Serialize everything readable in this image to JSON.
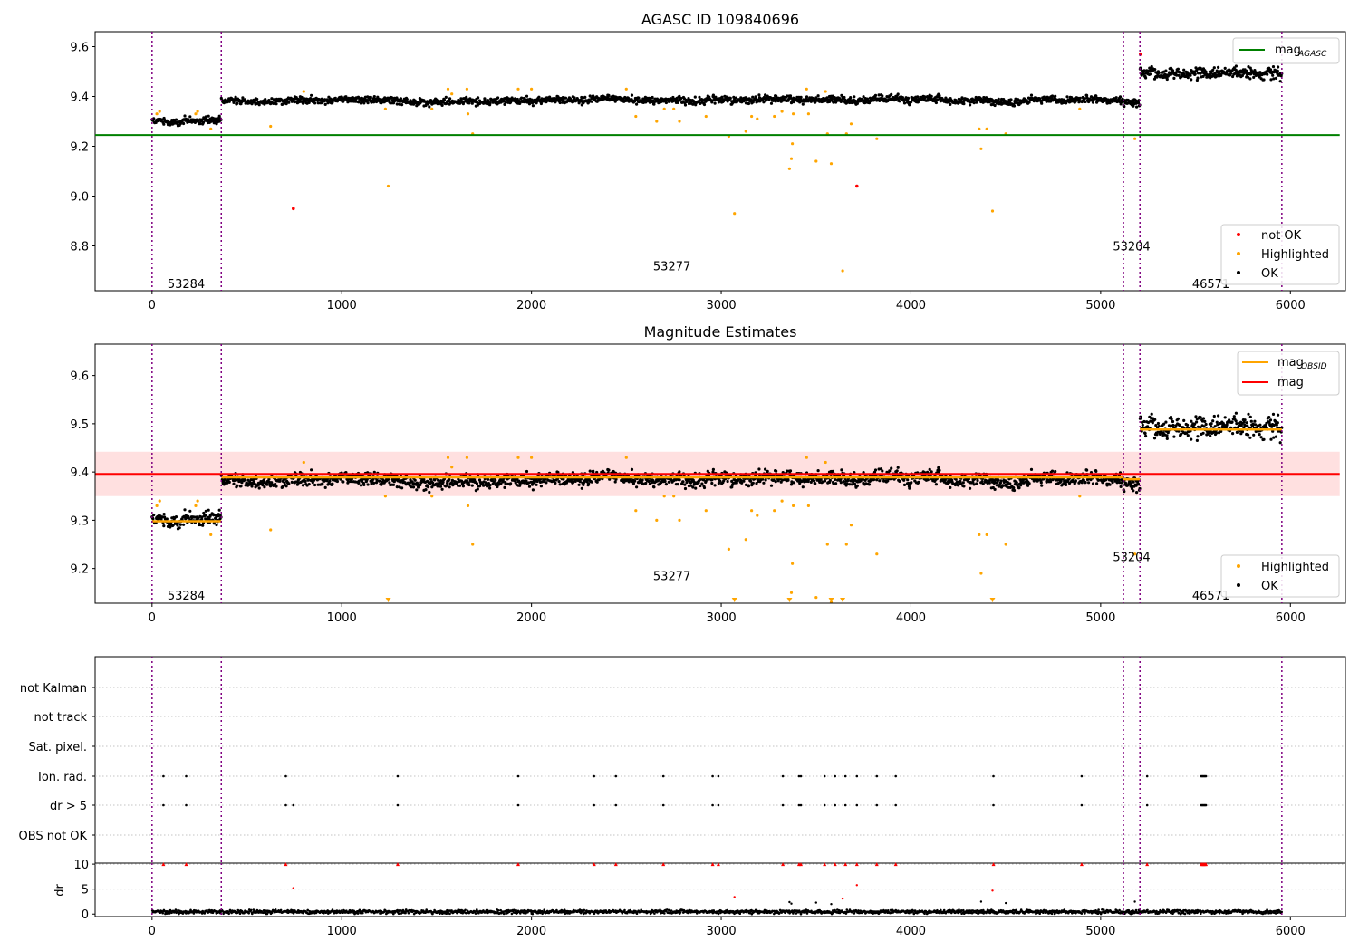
{
  "figure": {
    "title": "AGASC ID 109840696",
    "subtitle": "Magnitude Estimates"
  },
  "chart_data": [
    {
      "type": "scatter",
      "title": "AGASC ID 109840696",
      "xlim": [
        -300,
        6290
      ],
      "ylim": [
        8.62,
        9.66
      ],
      "xticks": [
        0,
        1000,
        2000,
        3000,
        4000,
        5000,
        6000
      ],
      "yticks": [
        8.8,
        9.0,
        9.2,
        9.4,
        9.6
      ],
      "grid": false,
      "obsid_boundaries": [
        0,
        365,
        5120,
        5207,
        5955
      ],
      "obsid_labels": [
        {
          "text": "53284",
          "x": 180,
          "y": 8.65
        },
        {
          "text": "53277",
          "x": 2740,
          "y": 8.72
        },
        {
          "text": "53204",
          "x": 5163,
          "y": 8.8
        },
        {
          "text": "46571",
          "x": 5581,
          "y": 8.65
        }
      ],
      "lines": [
        {
          "name": "mag_AGASC",
          "legend_main": "mag",
          "legend_sub": "AGASC",
          "color": "#008000",
          "y": 9.245,
          "x": [
            -300,
            6260
          ]
        }
      ],
      "legend_lines_position": "upper right",
      "legend_points_position": "lower right",
      "legend_points": [
        {
          "label": "not OK",
          "color": "#ff0000"
        },
        {
          "label": "Highlighted",
          "color": "#ffa500"
        },
        {
          "label": "OK",
          "color": "#000000"
        }
      ],
      "ok_segments": [
        {
          "x0": 0,
          "x1": 365,
          "level": 9.3,
          "noise": 0.015
        },
        {
          "x0": 365,
          "x1": 5120,
          "level": 9.385,
          "noise": 0.014
        },
        {
          "x0": 5120,
          "x1": 5207,
          "level": 9.38,
          "noise": 0.015
        },
        {
          "x0": 5207,
          "x1": 5955,
          "level": 9.49,
          "noise": 0.022
        }
      ],
      "highlighted_points": [
        [
          25,
          9.33
        ],
        [
          40,
          9.34
        ],
        [
          230,
          9.33
        ],
        [
          240,
          9.34
        ],
        [
          310,
          9.27
        ],
        [
          625,
          9.28
        ],
        [
          800,
          9.42
        ],
        [
          1230,
          9.35
        ],
        [
          1245,
          9.04
        ],
        [
          1475,
          9.35
        ],
        [
          1560,
          9.43
        ],
        [
          1580,
          9.41
        ],
        [
          1660,
          9.43
        ],
        [
          1665,
          9.33
        ],
        [
          1690,
          9.25
        ],
        [
          1930,
          9.43
        ],
        [
          2000,
          9.43
        ],
        [
          2500,
          9.43
        ],
        [
          2550,
          9.32
        ],
        [
          2660,
          9.3
        ],
        [
          2700,
          9.35
        ],
        [
          2750,
          9.35
        ],
        [
          2780,
          9.3
        ],
        [
          2920,
          9.32
        ],
        [
          3040,
          9.24
        ],
        [
          3070,
          8.93
        ],
        [
          3130,
          9.26
        ],
        [
          3160,
          9.32
        ],
        [
          3190,
          9.31
        ],
        [
          3280,
          9.32
        ],
        [
          3320,
          9.34
        ],
        [
          3360,
          9.11
        ],
        [
          3370,
          9.15
        ],
        [
          3375,
          9.21
        ],
        [
          3380,
          9.33
        ],
        [
          3450,
          9.43
        ],
        [
          3460,
          9.33
        ],
        [
          3500,
          9.14
        ],
        [
          3550,
          9.42
        ],
        [
          3560,
          9.25
        ],
        [
          3580,
          9.13
        ],
        [
          3640,
          8.7
        ],
        [
          3660,
          9.25
        ],
        [
          3685,
          9.29
        ],
        [
          3820,
          9.23
        ],
        [
          4360,
          9.27
        ],
        [
          4370,
          9.19
        ],
        [
          4400,
          9.27
        ],
        [
          4430,
          8.94
        ],
        [
          4500,
          9.25
        ],
        [
          4890,
          9.35
        ],
        [
          5180,
          9.23
        ]
      ],
      "not_ok_points": [
        [
          745,
          8.95
        ],
        [
          3715,
          9.04
        ],
        [
          5210,
          9.57
        ]
      ]
    },
    {
      "type": "scatter",
      "title": "Magnitude Estimates",
      "xlim": [
        -300,
        6290
      ],
      "ylim": [
        9.128,
        9.665
      ],
      "xticks": [
        0,
        1000,
        2000,
        3000,
        4000,
        5000,
        6000
      ],
      "yticks": [
        9.2,
        9.3,
        9.4,
        9.5,
        9.6
      ],
      "grid": false,
      "obsid_labels": [
        {
          "text": "53284",
          "x": 180,
          "y": 9.145
        },
        {
          "text": "53277",
          "x": 2740,
          "y": 9.185
        },
        {
          "text": "53204",
          "x": 5163,
          "y": 9.225
        },
        {
          "text": "46571",
          "x": 5581,
          "y": 9.145
        }
      ],
      "mag": {
        "name": "mag",
        "color": "#ff0000",
        "value": 9.396,
        "band": [
          9.35,
          9.442
        ],
        "x": [
          -300,
          6260
        ]
      },
      "mag_obsid": [
        {
          "x0": 0,
          "x1": 365,
          "value": 9.298
        },
        {
          "x0": 365,
          "x1": 5120,
          "value": 9.389
        },
        {
          "x0": 5120,
          "x1": 5207,
          "value": 9.385
        },
        {
          "x0": 5207,
          "x1": 5955,
          "value": 9.488
        }
      ],
      "legend_lines": [
        {
          "legend_main": "mag",
          "legend_sub": "OBSID",
          "color": "#ffa500"
        },
        {
          "legend_main": "mag",
          "legend_sub": "",
          "color": "#ff0000"
        }
      ],
      "legend_points": [
        {
          "label": "Highlighted",
          "color": "#ffa500"
        },
        {
          "label": "OK",
          "color": "#000000"
        }
      ],
      "below_range_markers_x": [
        1245,
        3070,
        3360,
        3580,
        3640,
        4430
      ]
    },
    {
      "type": "flags",
      "categories": [
        "not Kalman",
        "not track",
        "Sat. pixel.",
        "Ion. rad.",
        "dr > 5",
        "OBS not OK"
      ],
      "flag_times": {
        "Ion. rad.": [
          60,
          180,
          705,
          1295,
          1930,
          2330,
          2445,
          2695,
          2955,
          2985,
          3325,
          3410,
          3420,
          3545,
          3600,
          3655,
          3715,
          3820,
          3920,
          4435,
          4900,
          5245,
          5530,
          5535,
          5540,
          5545,
          5550,
          5555
        ],
        "dr > 5": [
          60,
          180,
          705,
          745,
          1295,
          1930,
          2330,
          2445,
          2695,
          2955,
          2985,
          3325,
          3410,
          3420,
          3545,
          3600,
          3655,
          3715,
          3820,
          3920,
          4435,
          4900,
          5245,
          5530,
          5535,
          5540,
          5545,
          5550,
          5555
        ]
      }
    },
    {
      "type": "scatter",
      "ylabel": "dr",
      "xlim": [
        -300,
        6290
      ],
      "ylim": [
        -0.5,
        10.2
      ],
      "xticks": [
        0,
        1000,
        2000,
        3000,
        4000,
        5000,
        6000
      ],
      "yticks": [
        0,
        5,
        10
      ],
      "capped_value": 10,
      "capped_times": [
        60,
        180,
        705,
        1295,
        1930,
        2330,
        2445,
        2695,
        2955,
        2985,
        3325,
        3410,
        3420,
        3545,
        3600,
        3655,
        3715,
        3820,
        3920,
        4435,
        4900,
        5245,
        5530,
        5535,
        5540,
        5545,
        5550,
        5555
      ],
      "red_points": [
        [
          745,
          5.2
        ],
        [
          3070,
          3.4
        ],
        [
          3640,
          3.1
        ],
        [
          3715,
          5.8
        ],
        [
          4430,
          4.7
        ]
      ],
      "mid_points": [
        [
          3360,
          2.4
        ],
        [
          3370,
          2.1
        ],
        [
          3500,
          2.3
        ],
        [
          3580,
          2.0
        ],
        [
          4370,
          2.5
        ],
        [
          4500,
          2.2
        ],
        [
          5180,
          2.5
        ]
      ]
    }
  ]
}
